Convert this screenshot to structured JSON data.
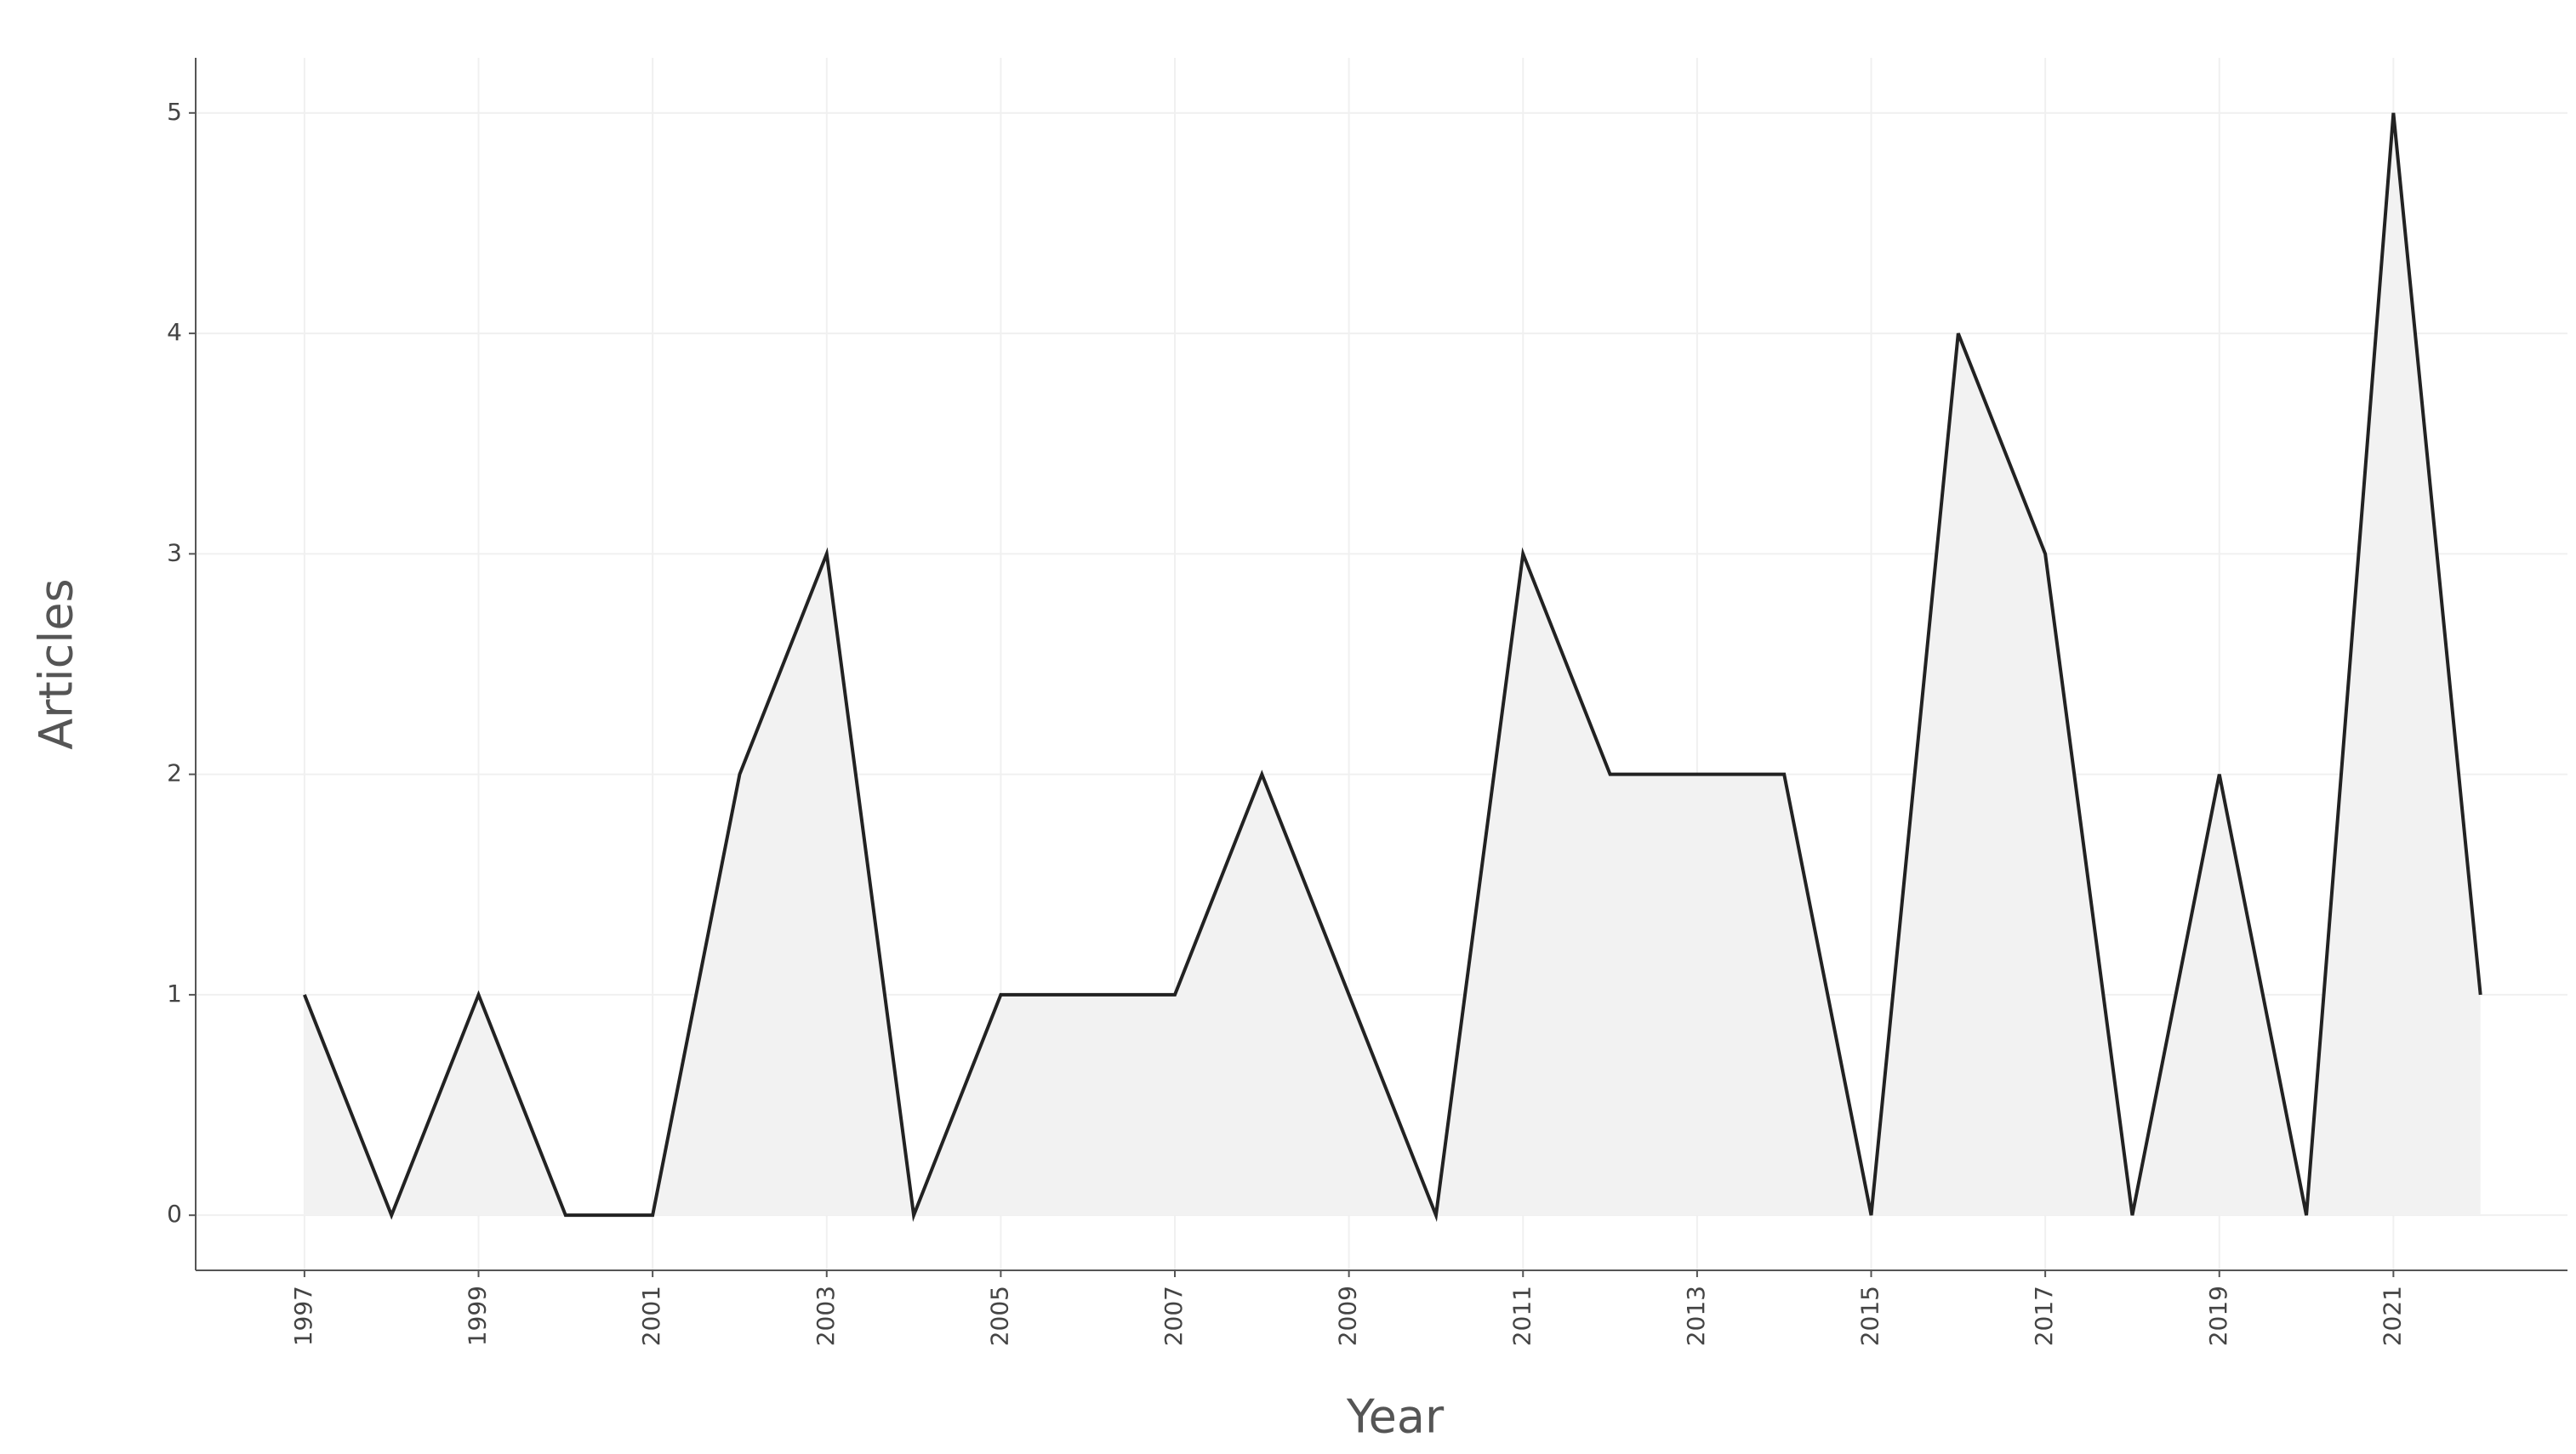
{
  "chart_data": {
    "type": "area",
    "x_label": "Year",
    "y_label": "Articles",
    "x": [
      1997,
      1998,
      1999,
      2000,
      2001,
      2002,
      2003,
      2004,
      2005,
      2006,
      2007,
      2008,
      2009,
      2010,
      2011,
      2012,
      2013,
      2014,
      2015,
      2016,
      2017,
      2018,
      2019,
      2020,
      2021,
      2022
    ],
    "values": [
      1,
      0,
      1,
      0,
      0,
      2,
      3,
      0,
      1,
      1,
      1,
      2,
      1,
      0,
      3,
      2,
      2,
      2,
      0,
      4,
      3,
      0,
      2,
      0,
      5,
      1
    ],
    "color": "#222222",
    "fill": "#f2f2f2",
    "xlim": [
      1995.75,
      2023
    ],
    "xticks": [
      1997,
      1999,
      2001,
      2003,
      2005,
      2007,
      2009,
      2011,
      2013,
      2015,
      2017,
      2019,
      2021
    ],
    "ylim": [
      -0.25,
      5.25
    ],
    "yticks": [
      0,
      1,
      2,
      3,
      4,
      5
    ],
    "grid": true
  }
}
